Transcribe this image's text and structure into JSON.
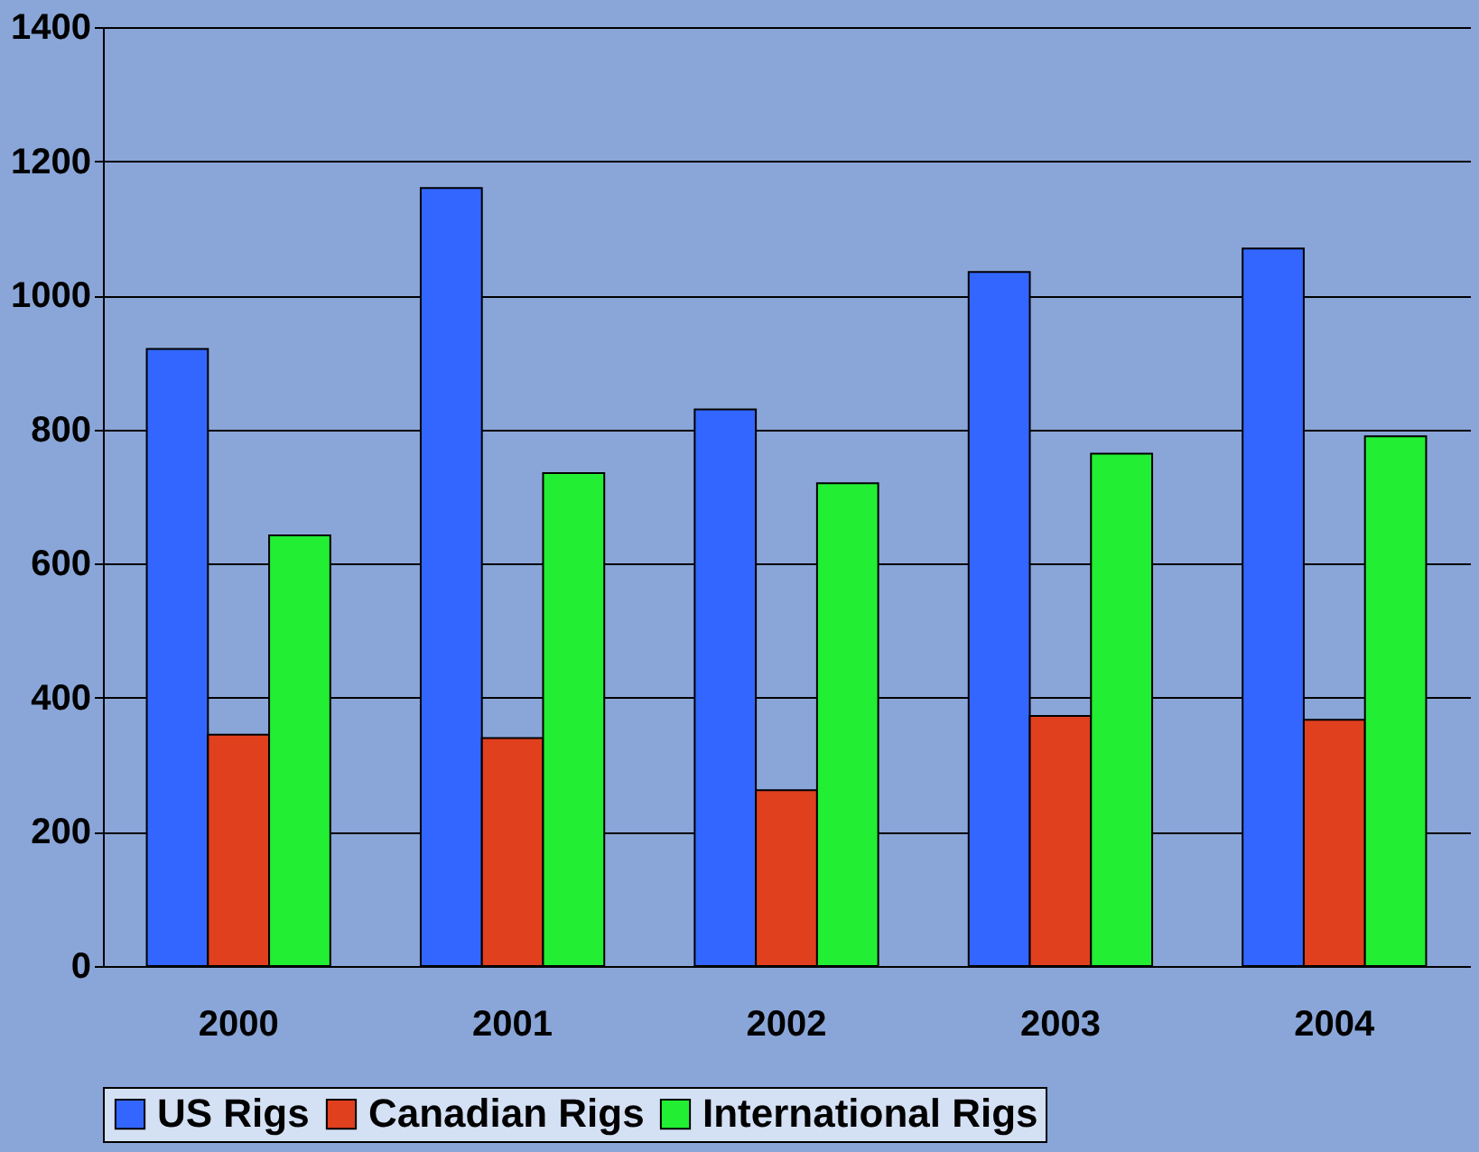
{
  "chart_data": {
    "type": "bar",
    "categories": [
      "2000",
      "2001",
      "2002",
      "2003",
      "2004"
    ],
    "series": [
      {
        "name": "US Rigs",
        "color": "#3366ff",
        "values": [
          920,
          1160,
          830,
          1035,
          1070
        ]
      },
      {
        "name": "Canadian Rigs",
        "color": "#e0401e",
        "values": [
          345,
          340,
          262,
          373,
          367
        ]
      },
      {
        "name": "International Rigs",
        "color": "#22ee33",
        "values": [
          642,
          735,
          720,
          764,
          790
        ]
      }
    ],
    "ylim": [
      0,
      1400
    ],
    "yticks": [
      0,
      200,
      400,
      600,
      800,
      1000,
      1200,
      1400
    ],
    "grid": "y",
    "legend": "bottom"
  }
}
